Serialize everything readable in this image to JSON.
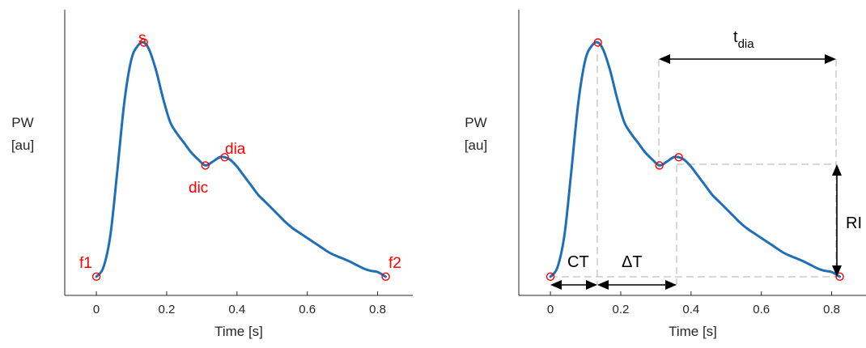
{
  "chart_data": [
    {
      "type": "line",
      "x": [
        0,
        0.02,
        0.04,
        0.06,
        0.08,
        0.1,
        0.12,
        0.135,
        0.15,
        0.17,
        0.19,
        0.21,
        0.23,
        0.25,
        0.27,
        0.29,
        0.31,
        0.33,
        0.35,
        0.365,
        0.38,
        0.4,
        0.42,
        0.44,
        0.46,
        0.48,
        0.5,
        0.52,
        0.54,
        0.56,
        0.58,
        0.6,
        0.62,
        0.64,
        0.66,
        0.68,
        0.7,
        0.72,
        0.74,
        0.76,
        0.78,
        0.8,
        0.823
      ],
      "y": [
        0,
        0.04,
        0.18,
        0.46,
        0.75,
        0.93,
        0.99,
        1.0,
        0.97,
        0.88,
        0.76,
        0.66,
        0.61,
        0.57,
        0.53,
        0.5,
        0.475,
        0.49,
        0.51,
        0.51,
        0.5,
        0.47,
        0.43,
        0.39,
        0.35,
        0.32,
        0.29,
        0.26,
        0.23,
        0.205,
        0.185,
        0.165,
        0.145,
        0.125,
        0.105,
        0.09,
        0.078,
        0.065,
        0.05,
        0.035,
        0.025,
        0.02,
        0
      ],
      "xlabel": "Time [s]",
      "ylabel_lines": [
        "PW",
        "[au]"
      ],
      "xticks": [
        "0",
        "0.2",
        "0.4",
        "0.6",
        "0.8"
      ],
      "xtick_values": [
        0,
        0.2,
        0.4,
        0.6,
        0.8
      ],
      "xlim": [
        -0.09,
        0.9
      ],
      "ylim": [
        -0.08,
        1.14
      ],
      "grid": false,
      "line_color": "#1f6fb8",
      "marker_color": "#ff0000",
      "points": [
        {
          "label": "f1",
          "x": 0,
          "y": 0
        },
        {
          "label": "s",
          "x": 0.135,
          "y": 1.0
        },
        {
          "label": "dic",
          "x": 0.31,
          "y": 0.475
        },
        {
          "label": "dia",
          "x": 0.365,
          "y": 0.51
        },
        {
          "label": "f2",
          "x": 0.823,
          "y": 0
        }
      ]
    },
    {
      "type": "line",
      "xlabel": "Time [s]",
      "ylabel_lines": [
        "PW",
        "[au]"
      ],
      "xticks": [
        "0",
        "0.2",
        "0.4",
        "0.6",
        "0.8"
      ],
      "xtick_values": [
        0,
        0.2,
        0.4,
        0.6,
        0.8
      ],
      "xlim": [
        -0.09,
        0.9
      ],
      "ylim": [
        -0.08,
        1.14
      ],
      "grid": false,
      "points_ref": "same waveform and fiducial points as first chart",
      "annotations": {
        "ct": "CT",
        "delta_t": "ΔT",
        "ri": "RI",
        "t_dia_main": "t",
        "t_dia_sub": "dia"
      },
      "guide_color": "#bfbfbf",
      "arrow_color": "#000000"
    }
  ]
}
